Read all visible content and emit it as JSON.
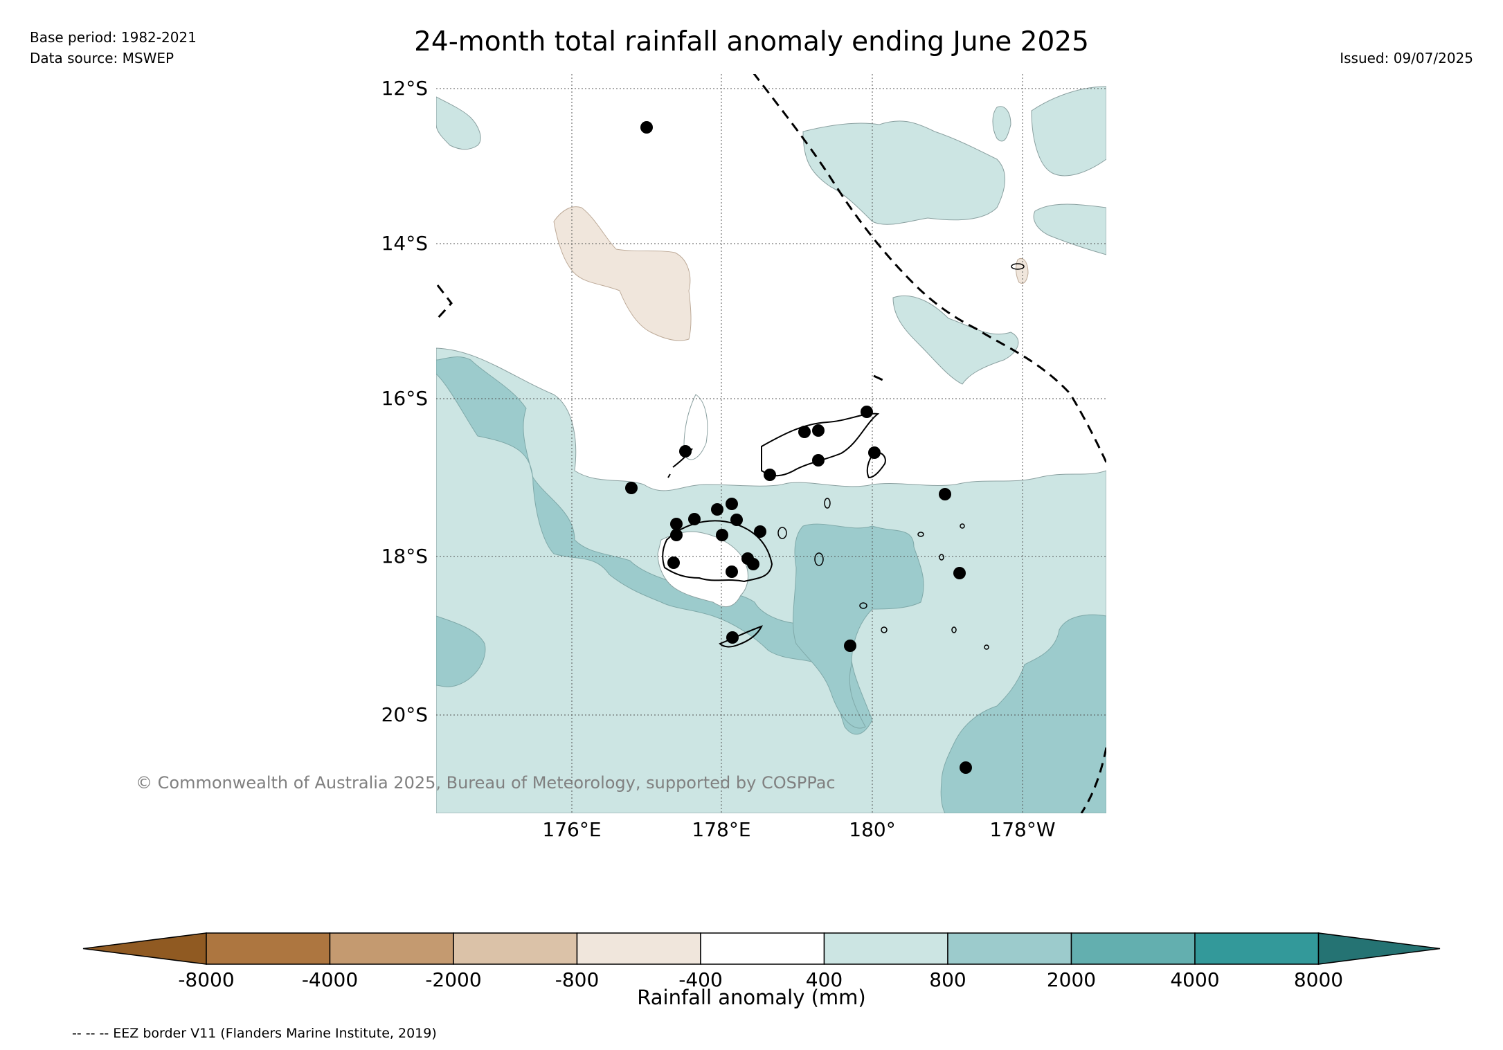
{
  "header": {
    "title": "24-month total rainfall anomaly ending June 2025",
    "base_period": "Base period: 1982-2021",
    "data_source": "Data source: MSWEP",
    "issued": "Issued: 09/07/2025"
  },
  "map": {
    "lat_labels": [
      "12°S",
      "14°S",
      "16°S",
      "18°S",
      "20°S"
    ],
    "lon_labels": [
      "176°E",
      "178°E",
      "180°",
      "178°W"
    ],
    "copyright": "© Commonwealth of Australia 2025, Bureau of Meteorology, supported by COSPPac",
    "colors": {
      "band_400_800": "#cce5e3",
      "band_800_2000": "#9ccbcc",
      "band_neg_800_400": "#f0e6dc",
      "coast": "#000000",
      "eez_border": "#000000",
      "station": "#000000"
    }
  },
  "colorbar": {
    "label": "Rainfall anomaly (mm)",
    "ticks": [
      "-8000",
      "-4000",
      "-2000",
      "-800",
      "-400",
      "400",
      "800",
      "2000",
      "4000",
      "8000"
    ],
    "colors": [
      "#905a22",
      "#ad7640",
      "#c49a70",
      "#dbc2a8",
      "#f0e6dc",
      "#ffffff",
      "#cce5e3",
      "#9ccbcc",
      "#63afaf",
      "#33999a",
      "#257373"
    ]
  },
  "footer": {
    "eez_note": "-- -- -- EEZ border V11 (Flanders Marine Institute, 2019)"
  }
}
